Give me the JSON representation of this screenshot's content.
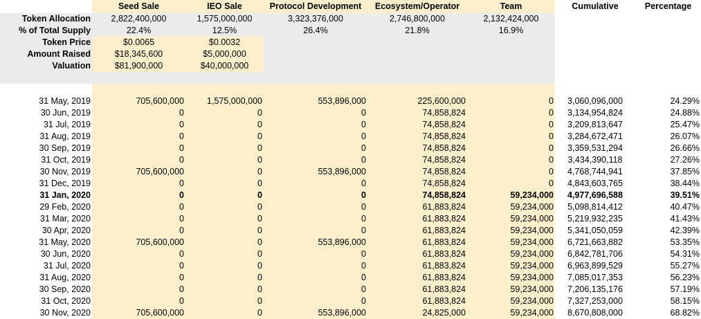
{
  "columns": [
    "",
    "Seed Sale",
    "IEO Sale",
    "Protocol Development",
    "Ecosystem/Operator",
    "Team",
    "Cumulative",
    "Percentage"
  ],
  "summary": [
    {
      "label": "Token Allocation",
      "cells": [
        "2,822,400,000",
        "1,575,000,000",
        "3,323,376,000",
        "2,746,800,000",
        "2,132,424,000"
      ]
    },
    {
      "label": "% of Total Supply",
      "cells": [
        "22.4%",
        "12.5%",
        "26.4%",
        "21.8%",
        "16.9%"
      ]
    },
    {
      "label": "Token Price",
      "cells": [
        "$0.0065",
        "$0.0032",
        "",
        "",
        ""
      ]
    },
    {
      "label": "Amount Raised",
      "cells": [
        "$18,345,600",
        "$5,000,000",
        "",
        "",
        ""
      ]
    },
    {
      "label": "Valuation",
      "cells": [
        "$81,900,000",
        "$40,000,000",
        "",
        "",
        ""
      ]
    }
  ],
  "rows": [
    {
      "date": "31 May, 2019",
      "cells": [
        "705,600,000",
        "1,575,000,000",
        "553,896,000",
        "225,600,000",
        "0",
        "3,060,096,000",
        "24.29%"
      ]
    },
    {
      "date": "30 Jun, 2019",
      "cells": [
        "0",
        "0",
        "0",
        "74,858,824",
        "0",
        "3,134,954,824",
        "24.88%"
      ]
    },
    {
      "date": "31 Jul, 2019",
      "cells": [
        "0",
        "0",
        "0",
        "74,858,824",
        "0",
        "3,209,813,647",
        "25.47%"
      ]
    },
    {
      "date": "31 Aug, 2019",
      "cells": [
        "0",
        "0",
        "0",
        "74,858,824",
        "0",
        "3,284,672,471",
        "26.07%"
      ]
    },
    {
      "date": "30 Sep, 2019",
      "cells": [
        "0",
        "0",
        "0",
        "74,858,824",
        "0",
        "3,359,531,294",
        "26.66%"
      ]
    },
    {
      "date": "31 Oct, 2019",
      "cells": [
        "0",
        "0",
        "0",
        "74,858,824",
        "0",
        "3,434,390,118",
        "27.26%"
      ]
    },
    {
      "date": "30 Nov, 2019",
      "cells": [
        "705,600,000",
        "0",
        "553,896,000",
        "74,858,824",
        "0",
        "4,768,744,941",
        "37.85%"
      ]
    },
    {
      "date": "31 Dec, 2019",
      "cells": [
        "0",
        "0",
        "0",
        "74,858,824",
        "0",
        "4,843,603,765",
        "38.44%"
      ]
    },
    {
      "date": "31 Jan, 2020",
      "bold": true,
      "cells": [
        "0",
        "0",
        "0",
        "74,858,824",
        "59,234,000",
        "4,977,696,588",
        "39.51%"
      ]
    },
    {
      "date": "29 Feb, 2020",
      "cells": [
        "0",
        "0",
        "0",
        "61,883,824",
        "59,234,000",
        "5,098,814,412",
        "40.47%"
      ]
    },
    {
      "date": "31 Mar, 2020",
      "cells": [
        "0",
        "0",
        "0",
        "61,883,824",
        "59,234,000",
        "5,219,932,235",
        "41.43%"
      ]
    },
    {
      "date": "30 Apr, 2020",
      "cells": [
        "0",
        "0",
        "0",
        "61,883,824",
        "59,234,000",
        "5,341,050,059",
        "42.39%"
      ]
    },
    {
      "date": "31 May, 2020",
      "cells": [
        "705,600,000",
        "0",
        "553,896,000",
        "61,883,824",
        "59,234,000",
        "6,721,663,882",
        "53.35%"
      ]
    },
    {
      "date": "30 Jun, 2020",
      "cells": [
        "0",
        "0",
        "0",
        "61,883,824",
        "59,234,000",
        "6,842,781,706",
        "54.31%"
      ]
    },
    {
      "date": "31 Jul, 2020",
      "cells": [
        "0",
        "0",
        "0",
        "61,883,824",
        "59,234,000",
        "6,963,899,529",
        "55.27%"
      ]
    },
    {
      "date": "31 Aug, 2020",
      "cells": [
        "0",
        "0",
        "0",
        "61,883,824",
        "59,234,000",
        "7,085,017,353",
        "56.23%"
      ]
    },
    {
      "date": "30 Sep, 2020",
      "cells": [
        "0",
        "0",
        "0",
        "61,883,824",
        "59,234,000",
        "7,206,135,176",
        "57.19%"
      ]
    },
    {
      "date": "31 Oct, 2020",
      "cells": [
        "0",
        "0",
        "0",
        "61,883,824",
        "59,234,000",
        "7,327,253,000",
        "58.15%"
      ]
    },
    {
      "date": "30 Nov, 2020",
      "cells": [
        "705,600,000",
        "0",
        "553,896,000",
        "24,825,000",
        "59,234,000",
        "8,670,808,000",
        "68.82%"
      ]
    }
  ],
  "colors": {
    "yellow": "#fcf0cc",
    "gray": "#ebebeb"
  }
}
